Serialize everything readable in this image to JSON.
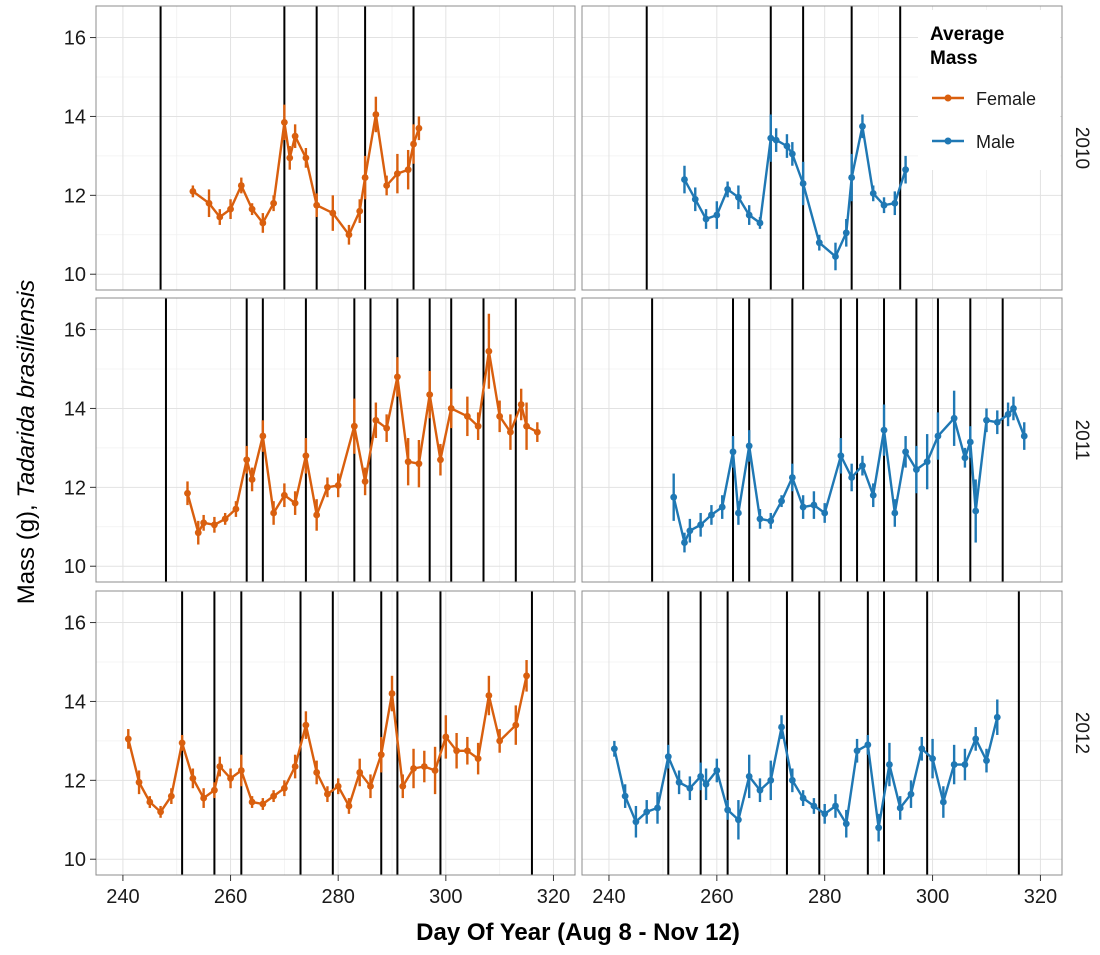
{
  "colors": {
    "female": "#d95f0e",
    "male": "#1f78b4"
  },
  "axes": {
    "xlabel": "Day Of Year (Aug 8 - Nov 12)",
    "ylabel_prefix": "Mass (g), ",
    "ylabel_species": "Tadarida brasiliensis"
  },
  "legend": {
    "title_line1": "Average",
    "title_line2": "Mass",
    "female_label": "Female",
    "male_label": "Male"
  },
  "chart_data": {
    "type": "line",
    "facets": "rows = year, columns = sex",
    "xlim": [
      235,
      324
    ],
    "ylim": [
      9.6,
      16.8
    ],
    "x_ticks": [
      240,
      260,
      280,
      300,
      320
    ],
    "y_ticks": [
      10,
      12,
      14,
      16
    ],
    "grid": true,
    "legend_position": "top-right",
    "panels": [
      {
        "year": "2010",
        "vlines": [
          247,
          270,
          276,
          285,
          294
        ],
        "female": [
          [
            253,
            12.1,
            0.15
          ],
          [
            256,
            11.8,
            0.35
          ],
          [
            258,
            11.45,
            0.2
          ],
          [
            260,
            11.65,
            0.25
          ],
          [
            262,
            12.25,
            0.2
          ],
          [
            264,
            11.65,
            0.15
          ],
          [
            266,
            11.3,
            0.25
          ],
          [
            268,
            11.8,
            0.2
          ],
          [
            270,
            13.85,
            0.45
          ],
          [
            271,
            12.95,
            0.3
          ],
          [
            272,
            13.5,
            0.3
          ],
          [
            274,
            12.95,
            0.25
          ],
          [
            276,
            11.75,
            0.3
          ],
          [
            279,
            11.55,
            0.45
          ],
          [
            282,
            11.0,
            0.25
          ],
          [
            284,
            11.6,
            0.3
          ],
          [
            285,
            12.45,
            0.55
          ],
          [
            287,
            14.05,
            0.45
          ],
          [
            289,
            12.25,
            0.25
          ],
          [
            291,
            12.55,
            0.5
          ],
          [
            293,
            12.65,
            0.5
          ],
          [
            294,
            13.3,
            0.5
          ],
          [
            295,
            13.7,
            0.3
          ]
        ],
        "male": [
          [
            254,
            12.4,
            0.35
          ],
          [
            256,
            11.9,
            0.3
          ],
          [
            258,
            11.4,
            0.25
          ],
          [
            260,
            11.5,
            0.35
          ],
          [
            262,
            12.15,
            0.2
          ],
          [
            264,
            11.95,
            0.3
          ],
          [
            266,
            11.5,
            0.25
          ],
          [
            268,
            11.3,
            0.15
          ],
          [
            270,
            13.45,
            0.6
          ],
          [
            271,
            13.4,
            0.3
          ],
          [
            273,
            13.25,
            0.3
          ],
          [
            274,
            13.05,
            0.3
          ],
          [
            276,
            12.3,
            0.55
          ],
          [
            279,
            10.8,
            0.2
          ],
          [
            282,
            10.45,
            0.35
          ],
          [
            284,
            11.05,
            0.35
          ],
          [
            285,
            12.45,
            0.6
          ],
          [
            287,
            13.75,
            0.3
          ],
          [
            289,
            12.05,
            0.2
          ],
          [
            291,
            11.75,
            0.2
          ],
          [
            293,
            11.8,
            0.3
          ],
          [
            295,
            12.65,
            0.35
          ]
        ]
      },
      {
        "year": "2011",
        "vlines": [
          248,
          263,
          266,
          274,
          283,
          286,
          291,
          297,
          301,
          307,
          313
        ],
        "female": [
          [
            252,
            11.85,
            0.3
          ],
          [
            254,
            10.85,
            0.3
          ],
          [
            255,
            11.1,
            0.2
          ],
          [
            257,
            11.05,
            0.2
          ],
          [
            259,
            11.2,
            0.15
          ],
          [
            261,
            11.45,
            0.2
          ],
          [
            263,
            12.7,
            0.35
          ],
          [
            264,
            12.2,
            0.3
          ],
          [
            266,
            13.3,
            0.4
          ],
          [
            268,
            11.35,
            0.3
          ],
          [
            270,
            11.8,
            0.3
          ],
          [
            272,
            11.6,
            0.3
          ],
          [
            274,
            12.8,
            0.45
          ],
          [
            276,
            11.3,
            0.4
          ],
          [
            278,
            12.0,
            0.25
          ],
          [
            280,
            12.05,
            0.3
          ],
          [
            283,
            13.55,
            0.7
          ],
          [
            285,
            12.15,
            0.35
          ],
          [
            287,
            13.7,
            0.45
          ],
          [
            289,
            13.5,
            0.35
          ],
          [
            291,
            14.8,
            0.5
          ],
          [
            293,
            12.65,
            0.6
          ],
          [
            295,
            12.6,
            0.6
          ],
          [
            297,
            14.35,
            0.6
          ],
          [
            299,
            12.7,
            0.4
          ],
          [
            301,
            14.0,
            0.5
          ],
          [
            304,
            13.8,
            0.5
          ],
          [
            306,
            13.55,
            0.35
          ],
          [
            308,
            15.45,
            0.95
          ],
          [
            310,
            13.8,
            0.4
          ],
          [
            312,
            13.4,
            0.45
          ],
          [
            314,
            14.1,
            0.4
          ],
          [
            315,
            13.55,
            0.6
          ],
          [
            317,
            13.4,
            0.25
          ]
        ],
        "male": [
          [
            252,
            11.75,
            0.6
          ],
          [
            254,
            10.6,
            0.25
          ],
          [
            255,
            10.9,
            0.3
          ],
          [
            257,
            11.05,
            0.3
          ],
          [
            259,
            11.3,
            0.25
          ],
          [
            261,
            11.5,
            0.3
          ],
          [
            263,
            12.9,
            0.4
          ],
          [
            264,
            11.35,
            0.3
          ],
          [
            266,
            13.05,
            0.4
          ],
          [
            268,
            11.2,
            0.25
          ],
          [
            270,
            11.15,
            0.2
          ],
          [
            272,
            11.65,
            0.15
          ],
          [
            274,
            12.25,
            0.35
          ],
          [
            276,
            11.5,
            0.3
          ],
          [
            278,
            11.55,
            0.35
          ],
          [
            280,
            11.35,
            0.25
          ],
          [
            283,
            12.8,
            0.45
          ],
          [
            285,
            12.25,
            0.35
          ],
          [
            287,
            12.55,
            0.25
          ],
          [
            289,
            11.8,
            0.3
          ],
          [
            291,
            13.45,
            0.65
          ],
          [
            293,
            11.35,
            0.35
          ],
          [
            295,
            12.9,
            0.4
          ],
          [
            297,
            12.45,
            0.6
          ],
          [
            299,
            12.65,
            0.7
          ],
          [
            301,
            13.3,
            0.6
          ],
          [
            304,
            13.75,
            0.7
          ],
          [
            306,
            12.75,
            0.25
          ],
          [
            307,
            13.15,
            0.4
          ],
          [
            308,
            11.4,
            0.8
          ],
          [
            310,
            13.7,
            0.3
          ],
          [
            312,
            13.65,
            0.3
          ],
          [
            314,
            13.85,
            0.3
          ],
          [
            315,
            14.0,
            0.3
          ],
          [
            317,
            13.3,
            0.35
          ]
        ]
      },
      {
        "year": "2012",
        "vlines": [
          251,
          257,
          262,
          273,
          279,
          288,
          291,
          299,
          316
        ],
        "female": [
          [
            241,
            13.05,
            0.25
          ],
          [
            243,
            11.95,
            0.3
          ],
          [
            245,
            11.45,
            0.15
          ],
          [
            247,
            11.2,
            0.15
          ],
          [
            249,
            11.6,
            0.2
          ],
          [
            251,
            12.95,
            0.2
          ],
          [
            253,
            12.05,
            0.25
          ],
          [
            255,
            11.55,
            0.25
          ],
          [
            257,
            11.75,
            0.2
          ],
          [
            258,
            12.35,
            0.25
          ],
          [
            260,
            12.05,
            0.25
          ],
          [
            262,
            12.25,
            0.4
          ],
          [
            264,
            11.45,
            0.15
          ],
          [
            266,
            11.4,
            0.15
          ],
          [
            268,
            11.6,
            0.15
          ],
          [
            270,
            11.8,
            0.2
          ],
          [
            272,
            12.35,
            0.3
          ],
          [
            274,
            13.4,
            0.35
          ],
          [
            276,
            12.2,
            0.3
          ],
          [
            278,
            11.65,
            0.2
          ],
          [
            280,
            11.85,
            0.2
          ],
          [
            282,
            11.35,
            0.2
          ],
          [
            284,
            12.2,
            0.35
          ],
          [
            286,
            11.85,
            0.3
          ],
          [
            288,
            12.65,
            0.45
          ],
          [
            290,
            14.2,
            0.45
          ],
          [
            292,
            11.85,
            0.3
          ],
          [
            294,
            12.3,
            0.5
          ],
          [
            296,
            12.35,
            0.4
          ],
          [
            298,
            12.25,
            0.6
          ],
          [
            300,
            13.1,
            0.55
          ],
          [
            302,
            12.75,
            0.45
          ],
          [
            304,
            12.75,
            0.35
          ],
          [
            306,
            12.55,
            0.4
          ],
          [
            308,
            14.15,
            0.5
          ],
          [
            310,
            13.0,
            0.3
          ],
          [
            313,
            13.4,
            0.5
          ],
          [
            315,
            14.65,
            0.4
          ]
        ],
        "male": [
          [
            241,
            12.8,
            0.2
          ],
          [
            243,
            11.6,
            0.3
          ],
          [
            245,
            10.95,
            0.4
          ],
          [
            247,
            11.2,
            0.3
          ],
          [
            249,
            11.3,
            0.4
          ],
          [
            251,
            12.6,
            0.3
          ],
          [
            253,
            11.95,
            0.3
          ],
          [
            255,
            11.8,
            0.3
          ],
          [
            257,
            12.1,
            0.35
          ],
          [
            258,
            11.9,
            0.4
          ],
          [
            260,
            12.25,
            0.3
          ],
          [
            262,
            11.25,
            0.25
          ],
          [
            264,
            11.0,
            0.5
          ],
          [
            266,
            12.1,
            0.55
          ],
          [
            268,
            11.75,
            0.3
          ],
          [
            270,
            12.0,
            0.5
          ],
          [
            272,
            13.35,
            0.3
          ],
          [
            274,
            12.0,
            0.3
          ],
          [
            276,
            11.55,
            0.2
          ],
          [
            278,
            11.35,
            0.2
          ],
          [
            280,
            11.15,
            0.25
          ],
          [
            282,
            11.35,
            0.3
          ],
          [
            284,
            10.9,
            0.35
          ],
          [
            286,
            12.75,
            0.3
          ],
          [
            288,
            12.9,
            0.25
          ],
          [
            290,
            10.8,
            0.35
          ],
          [
            292,
            12.4,
            0.55
          ],
          [
            294,
            11.3,
            0.3
          ],
          [
            296,
            11.65,
            0.35
          ],
          [
            298,
            12.8,
            0.3
          ],
          [
            300,
            12.55,
            0.5
          ],
          [
            302,
            11.45,
            0.4
          ],
          [
            304,
            12.4,
            0.5
          ],
          [
            306,
            12.4,
            0.4
          ],
          [
            308,
            13.05,
            0.3
          ],
          [
            310,
            12.5,
            0.3
          ],
          [
            312,
            13.6,
            0.45
          ]
        ]
      }
    ]
  }
}
